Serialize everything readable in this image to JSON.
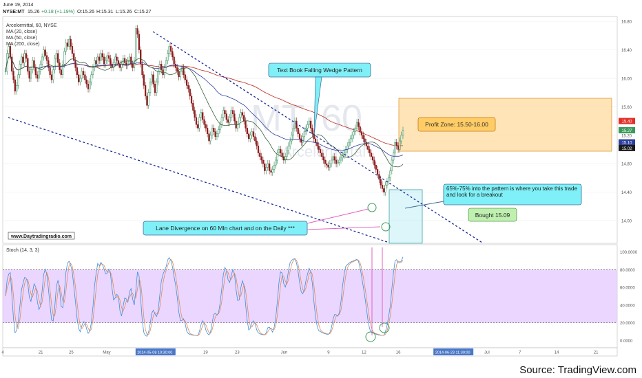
{
  "header": {
    "date": "June 19, 2014",
    "ticker": "NYSE:MT",
    "last": "15.26",
    "change": "+0.18 (+1.19%)",
    "o": "O:15.26",
    "h": "H:15.31",
    "l": "L:15.26",
    "c": "C:15.27"
  },
  "legend": {
    "title": "Arcelormittal, 60, NYSE",
    "ma20": "MA (20, close)",
    "ma50": "MA (50, close)",
    "ma200": "MA (200, close)"
  },
  "watermark": {
    "symbol": "MT, 60",
    "name": "Arcelormittal"
  },
  "website": "www.Daytradingradio.com",
  "source": "Source: TradingView.com",
  "annotations": {
    "wedge": "Text Book Falling Wedge Pattern",
    "profit": "Profit Zone: 15.50-16.00",
    "entry": "65%-75% into the pattern is where you take this trade and look for a breakout",
    "bought": "Bought 15.09",
    "divergence": "Lane Divergence on 60 MIn chart and on the Daily ***"
  },
  "stoch_label": "Stoch (14, 3, 3)",
  "colors": {
    "up": "#2e8b57",
    "down": "#8b1e1e",
    "ma20": "#3a5f3a",
    "ma50": "#2c3e9e",
    "ma200": "#c0392b",
    "stoch_k": "#3a8fd9",
    "stoch_d": "#e08a5a",
    "stoch_band": "#e6ccff",
    "wedge_line": "#1a2a9a",
    "profit_zone": "#ffd89a",
    "callout": "#7ff0f7",
    "bought_box": "#bff0b0"
  },
  "chart_data": [
    {
      "type": "candlestick",
      "title": "Arcelormittal, 60, NYSE",
      "y_ticks": [
        14.0,
        14.4,
        14.8,
        15.2,
        15.6,
        16.0,
        16.4,
        16.8
      ],
      "ylim": [
        13.7,
        16.85
      ],
      "price_tags": [
        {
          "label": "15.40",
          "value": 15.4,
          "color": "#e0302a"
        },
        {
          "label": "15.27",
          "value": 15.27,
          "color": "#3a9a5a"
        },
        {
          "label": "15.10",
          "value": 15.1,
          "color": "#2c3e9e"
        },
        {
          "label": "15.02",
          "value": 15.02,
          "color": "#1a1a1a"
        }
      ],
      "x_ticks": [
        "4",
        "21",
        "25",
        "May",
        "2014-05-08 10:30:00",
        "19",
        "23",
        "Jun",
        "9",
        "12",
        "16",
        "2014-06-23 11:30:00",
        "Jul",
        "7",
        "14",
        "21"
      ],
      "x_tick_index": [
        0,
        30,
        54,
        82,
        120,
        160,
        185,
        222,
        257,
        285,
        312,
        355,
        382,
        408,
        437,
        468
      ],
      "series_close": [
        16.1,
        16.35,
        16.45,
        16.3,
        16.1,
        15.98,
        15.82,
        15.9,
        16.05,
        16.2,
        16.3,
        16.22,
        16.35,
        16.28,
        16.1,
        16.0,
        16.12,
        16.25,
        16.15,
        16.05,
        16.0,
        16.1,
        16.2,
        16.3,
        16.4,
        16.32,
        16.25,
        16.15,
        16.05,
        15.98,
        16.12,
        16.28,
        16.35,
        16.22,
        16.12,
        16.05,
        16.2,
        16.38,
        16.5,
        16.45,
        16.55,
        16.45,
        16.35,
        16.25,
        16.15,
        16.05,
        15.95,
        16.0,
        16.1,
        16.05,
        15.98,
        15.92,
        15.85,
        15.95,
        16.05,
        16.15,
        16.25,
        16.2,
        16.3,
        16.25,
        16.35,
        16.3,
        16.2,
        16.25,
        16.32,
        16.28,
        16.2,
        16.15,
        16.22,
        16.3,
        16.25,
        16.2,
        16.15,
        16.2,
        16.28,
        16.22,
        16.18,
        16.25,
        16.3,
        16.2,
        16.15,
        16.25,
        16.7,
        16.62,
        16.4,
        16.2,
        16.05,
        15.9,
        15.75,
        15.62,
        15.8,
        15.95,
        16.05,
        15.92,
        15.8,
        15.95,
        16.1,
        16.2,
        16.12,
        16.05,
        16.15,
        16.25,
        16.35,
        16.45,
        16.38,
        16.3,
        16.2,
        16.15,
        16.1,
        16.02,
        16.1,
        16.15,
        16.05,
        15.98,
        15.9,
        15.85,
        15.75,
        15.65,
        15.55,
        15.45,
        15.35,
        15.3,
        15.45,
        15.52,
        15.42,
        15.35,
        15.3,
        15.22,
        15.12,
        15.2,
        15.3,
        15.25,
        15.18,
        15.22,
        15.28,
        15.35,
        15.45,
        15.55,
        15.5,
        15.42,
        15.38,
        15.45,
        15.55,
        15.5,
        15.4,
        15.3,
        15.35,
        15.45,
        15.52,
        15.48,
        15.4,
        15.3,
        15.22,
        15.15,
        15.2,
        15.25,
        15.18,
        15.12,
        15.05,
        14.95,
        14.9,
        14.85,
        14.8,
        14.7,
        14.75,
        14.8,
        14.7,
        14.68,
        14.72,
        14.78,
        14.85,
        14.95,
        15.0,
        14.95,
        14.9,
        14.85,
        14.9,
        14.98,
        15.05,
        15.12,
        15.2,
        15.3,
        15.4,
        15.3,
        15.22,
        15.15,
        15.1,
        15.18,
        15.25,
        15.3,
        15.35,
        15.4,
        15.3,
        15.22,
        15.15,
        15.1,
        15.05,
        15.0,
        14.95,
        14.9,
        14.85,
        14.8,
        14.78,
        14.75,
        14.8,
        14.85,
        14.9,
        14.85,
        14.8,
        14.82,
        14.85,
        14.88,
        14.92,
        14.95,
        15.0,
        15.05,
        15.1,
        15.15,
        15.2,
        15.25,
        15.3,
        15.38,
        15.32,
        15.25,
        15.2,
        15.15,
        15.1,
        15.05,
        15.0,
        14.95,
        14.9,
        14.85,
        14.78,
        14.72,
        14.65,
        14.58,
        14.5,
        14.45,
        14.4,
        14.5,
        14.55,
        14.6,
        14.7,
        14.85,
        14.95,
        15.1,
        15.05,
        15.0,
        15.12,
        15.2,
        15.27
      ]
    },
    {
      "type": "line",
      "title": "Stoch (14, 3, 3)",
      "y_ticks": [
        0,
        20,
        40,
        60,
        80,
        100
      ],
      "ylim": [
        -5,
        105
      ],
      "band": [
        20,
        80
      ]
    }
  ]
}
